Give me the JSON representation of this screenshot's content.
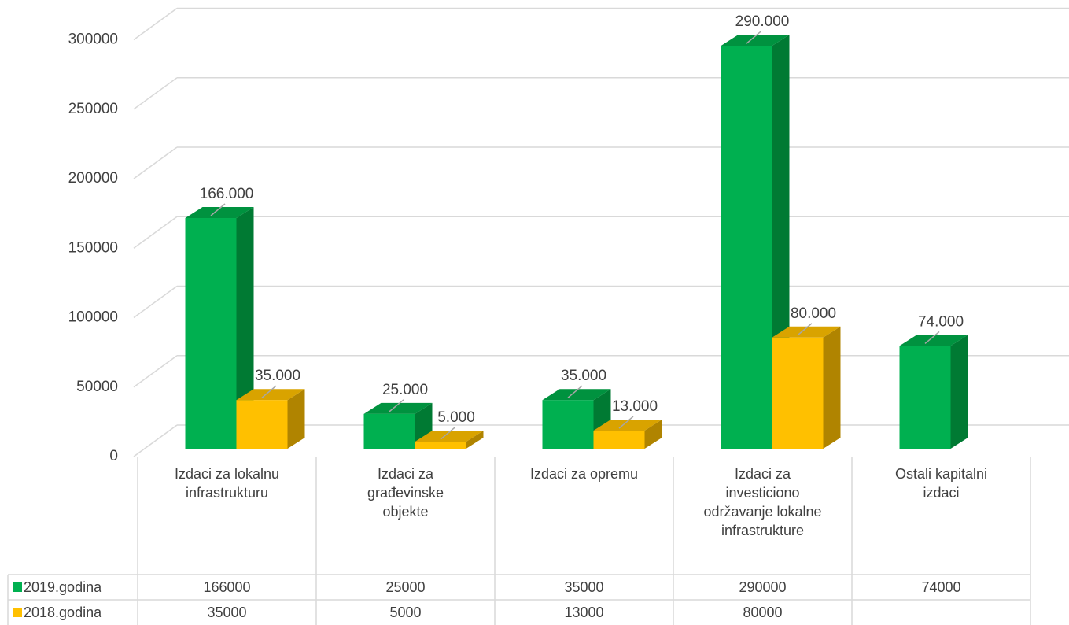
{
  "chart_data": {
    "type": "bar3d",
    "categories": [
      "Izdaci za lokalnu infrastrukturu",
      "Izdaci za građevinske objekte",
      "Izdaci za opremu",
      "Izdaci za investiciono održavanje lokalne infrastrukture",
      "Ostali kapitalni izdaci"
    ],
    "series": [
      {
        "name": "2019.godina",
        "color": "#00b050",
        "values": [
          166000,
          25000,
          35000,
          290000,
          74000
        ],
        "value_labels": [
          "166.000",
          "25.000",
          "35.000",
          "290.000",
          "74.000"
        ]
      },
      {
        "name": "2018.godina",
        "color": "#ffc000",
        "values": [
          35000,
          5000,
          13000,
          80000,
          null
        ],
        "value_labels": [
          "35.000",
          "5.000",
          "13.000",
          "80.000",
          null
        ]
      }
    ],
    "ylim": [
      0,
      300000
    ],
    "yticks": [
      0,
      50000,
      100000,
      150000,
      200000,
      250000,
      300000
    ],
    "grid": true,
    "data_table": true
  }
}
